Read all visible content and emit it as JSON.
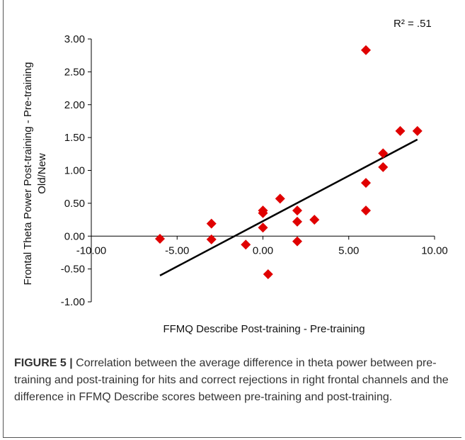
{
  "chart_data": {
    "type": "scatter",
    "xlabel": "FFMQ Describe Post-training - Pre-training",
    "ylabel_line1": "Frontal Theta Power Post-training - Pre-training",
    "ylabel_line2": "Old/New",
    "xlim": [
      -10,
      10
    ],
    "ylim": [
      -1,
      3
    ],
    "x_ticks": [
      -10,
      -5,
      0,
      5,
      10
    ],
    "x_tick_labels": [
      "-10.00",
      "-5.00",
      "0.00",
      "5.00",
      "10.00"
    ],
    "y_ticks": [
      3,
      2.5,
      2,
      1.5,
      1,
      0.5,
      0,
      -0.5,
      -1
    ],
    "y_tick_labels": [
      "3.00",
      "2.50",
      "2.00",
      "1.50",
      "1.00",
      "0.50",
      "0.00",
      "-0.50",
      "-1.00"
    ],
    "marker_color": "#e00000",
    "trendline_color": "#000000",
    "annotation": "R² = .51",
    "points": [
      {
        "x": -6,
        "y": -0.04
      },
      {
        "x": -3,
        "y": 0.19
      },
      {
        "x": -3,
        "y": -0.05
      },
      {
        "x": -1,
        "y": -0.13
      },
      {
        "x": 0,
        "y": 0.39
      },
      {
        "x": 0,
        "y": 0.35
      },
      {
        "x": 0,
        "y": 0.13
      },
      {
        "x": 0.3,
        "y": -0.58
      },
      {
        "x": 1,
        "y": 0.57
      },
      {
        "x": 2,
        "y": 0.39
      },
      {
        "x": 2,
        "y": 0.22
      },
      {
        "x": 2,
        "y": -0.08
      },
      {
        "x": 3,
        "y": 0.25
      },
      {
        "x": 6,
        "y": 2.83
      },
      {
        "x": 6,
        "y": 0.81
      },
      {
        "x": 6,
        "y": 0.39
      },
      {
        "x": 7,
        "y": 1.26
      },
      {
        "x": 7,
        "y": 1.05
      },
      {
        "x": 8,
        "y": 1.6
      },
      {
        "x": 9,
        "y": 1.6
      }
    ],
    "trendline": {
      "x": [
        -6,
        9
      ],
      "y": [
        -0.6,
        1.47
      ]
    }
  },
  "caption": {
    "label": "FIGURE 5 |",
    "text": " Correlation between the average difference in theta power between pre-training and post-training for hits and correct rejections in right frontal channels and the difference in FFMQ Describe scores between pre-training and post-training."
  }
}
